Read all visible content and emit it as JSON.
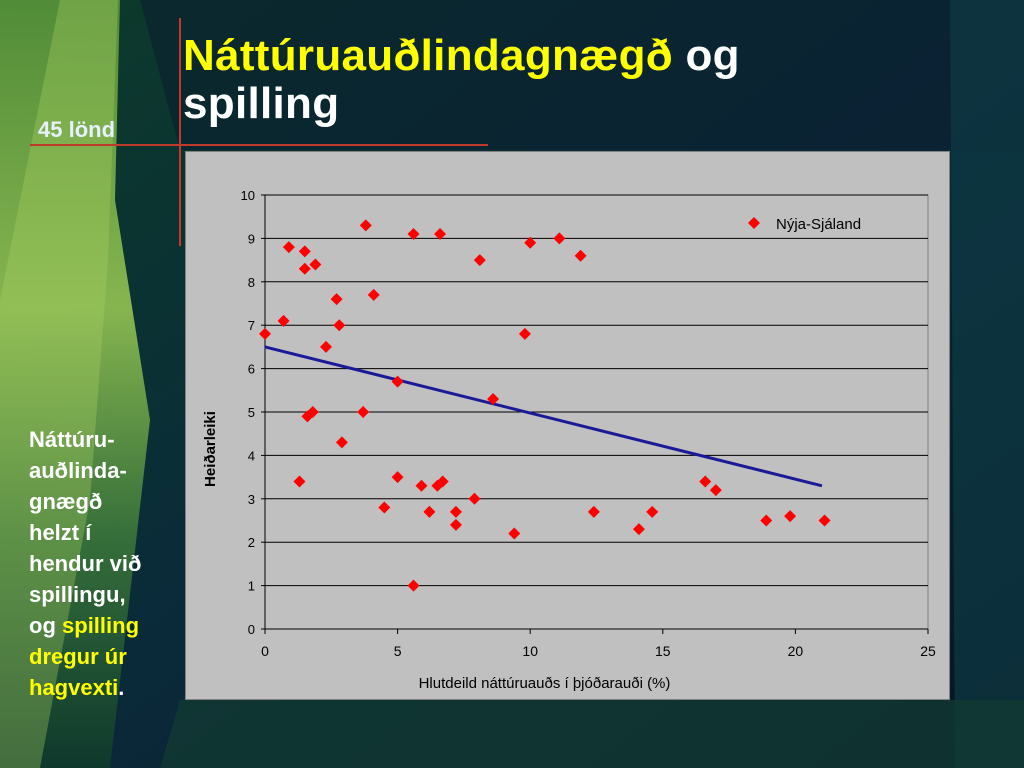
{
  "slide": {
    "title_main": "Náttúruauðlindagnægð",
    "title_tail": "og",
    "title_line2": "spilling",
    "subtitle": "45 lönd",
    "side_text_1": "Náttúru-",
    "side_text_2": "auðlinda-",
    "side_text_3": "gnægð",
    "side_text_4": "helzt í",
    "side_text_5": "hendur við",
    "side_text_6": "spillingu,",
    "side_text_7": "og",
    "side_text_8": "spilling",
    "side_text_9": "dregur úr",
    "side_text_10": "hagvexti",
    "side_text_11": ".",
    "colors": {
      "title_yellow": "#ffff00",
      "text_white": "#ffffff",
      "accent_red": "#c0392b"
    }
  },
  "chart_data": {
    "type": "scatter",
    "xlabel": "Hlutdeild náttúruauðs í þjóðarauði (%)",
    "ylabel": "Heiðarleiki",
    "xlim": [
      0,
      25
    ],
    "ylim": [
      0,
      10
    ],
    "xticks": [
      "0",
      "5",
      "10",
      "15",
      "20",
      "25"
    ],
    "yticks": [
      "0",
      "1",
      "2",
      "3",
      "4",
      "5",
      "6",
      "7",
      "8",
      "9",
      "10"
    ],
    "grid": "horizontal",
    "legend_position": "top-right",
    "legend_label": "Nýja-Sjáland",
    "marker_color": "#ff0000",
    "line_color": "#1a1a99",
    "plot_bg": "#c0c0c0",
    "points": [
      {
        "x": 0.0,
        "y": 6.8
      },
      {
        "x": 0.7,
        "y": 7.1
      },
      {
        "x": 0.9,
        "y": 8.8
      },
      {
        "x": 1.3,
        "y": 3.4
      },
      {
        "x": 1.5,
        "y": 8.3
      },
      {
        "x": 1.5,
        "y": 8.7
      },
      {
        "x": 1.6,
        "y": 4.9
      },
      {
        "x": 1.8,
        "y": 5.0
      },
      {
        "x": 1.9,
        "y": 8.4
      },
      {
        "x": 2.3,
        "y": 6.5
      },
      {
        "x": 2.7,
        "y": 7.6
      },
      {
        "x": 2.8,
        "y": 7.0
      },
      {
        "x": 2.9,
        "y": 4.3
      },
      {
        "x": 3.7,
        "y": 5.0
      },
      {
        "x": 3.8,
        "y": 9.3
      },
      {
        "x": 4.1,
        "y": 7.7
      },
      {
        "x": 4.5,
        "y": 2.8
      },
      {
        "x": 5.0,
        "y": 5.7
      },
      {
        "x": 5.0,
        "y": 3.5
      },
      {
        "x": 5.6,
        "y": 9.1
      },
      {
        "x": 5.6,
        "y": 1.0
      },
      {
        "x": 5.9,
        "y": 3.3
      },
      {
        "x": 6.2,
        "y": 2.7
      },
      {
        "x": 6.5,
        "y": 3.3
      },
      {
        "x": 6.6,
        "y": 9.1
      },
      {
        "x": 6.7,
        "y": 3.4
      },
      {
        "x": 7.2,
        "y": 2.7
      },
      {
        "x": 7.2,
        "y": 2.4
      },
      {
        "x": 7.9,
        "y": 3.0
      },
      {
        "x": 8.1,
        "y": 8.5
      },
      {
        "x": 8.6,
        "y": 5.3
      },
      {
        "x": 9.4,
        "y": 2.2
      },
      {
        "x": 9.8,
        "y": 6.8
      },
      {
        "x": 10.0,
        "y": 8.9
      },
      {
        "x": 11.1,
        "y": 9.0
      },
      {
        "x": 11.9,
        "y": 8.6
      },
      {
        "x": 12.4,
        "y": 2.7
      },
      {
        "x": 14.1,
        "y": 2.3
      },
      {
        "x": 14.6,
        "y": 2.7
      },
      {
        "x": 16.6,
        "y": 3.4
      },
      {
        "x": 17.0,
        "y": 3.2
      },
      {
        "x": 18.9,
        "y": 2.5
      },
      {
        "x": 19.8,
        "y": 2.6
      },
      {
        "x": 21.1,
        "y": 2.5
      }
    ],
    "trendline": [
      {
        "x": 0.0,
        "y": 6.5
      },
      {
        "x": 21.0,
        "y": 3.3
      }
    ]
  }
}
